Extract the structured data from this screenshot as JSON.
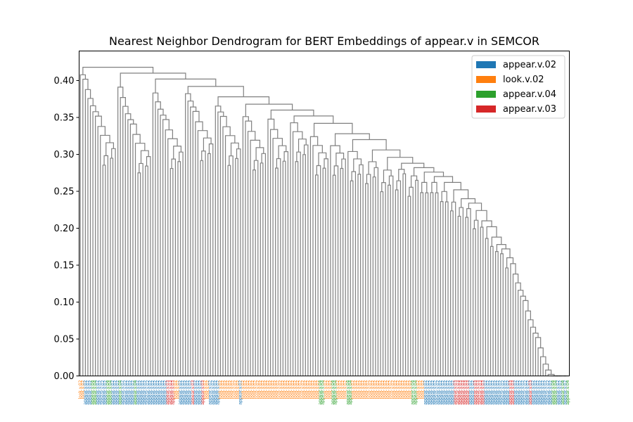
{
  "chart_data": {
    "type": "dendrogram",
    "title": "Nearest Neighbor Dendrogram for BERT Embeddings of appear.v in SEMCOR",
    "xlabel": "",
    "ylabel": "",
    "ylim": [
      0,
      0.44
    ],
    "yticks": [
      0.0,
      0.05,
      0.1,
      0.15,
      0.2,
      0.25,
      0.3,
      0.35,
      0.4
    ],
    "link_color": "#808080",
    "legend": {
      "placement": "top-right",
      "entries": [
        {
          "name": "appear.v.02",
          "color": "#1f77b4"
        },
        {
          "name": "look.v.02",
          "color": "#ff7f0e"
        },
        {
          "name": "appear.v.04",
          "color": "#2ca02c"
        },
        {
          "name": "appear.v.03",
          "color": "#d62728"
        }
      ]
    },
    "leaf_sense_runs": [
      [
        "look.v.02",
        2
      ],
      [
        "appear.v.02",
        3
      ],
      [
        "appear.v.04",
        2
      ],
      [
        "appear.v.02",
        4
      ],
      [
        "appear.v.04",
        2
      ],
      [
        "appear.v.02",
        3
      ],
      [
        "appear.v.04",
        1
      ],
      [
        "appear.v.02",
        5
      ],
      [
        "appear.v.04",
        1
      ],
      [
        "appear.v.02",
        12
      ],
      [
        "appear.v.03",
        3
      ],
      [
        "look.v.02",
        2
      ],
      [
        "appear.v.02",
        5
      ],
      [
        "appear.v.03",
        1
      ],
      [
        "appear.v.02",
        3
      ],
      [
        "appear.v.03",
        1
      ],
      [
        "look.v.02",
        2
      ],
      [
        "appear.v.02",
        4
      ],
      [
        "look.v.02",
        8
      ],
      [
        "appear.v.02",
        1
      ],
      [
        "look.v.02",
        31
      ],
      [
        "appear.v.04",
        2
      ],
      [
        "look.v.02",
        3
      ],
      [
        "appear.v.04",
        2
      ],
      [
        "look.v.02",
        4
      ],
      [
        "appear.v.04",
        2
      ],
      [
        "look.v.02",
        24
      ],
      [
        "appear.v.04",
        2
      ],
      [
        "look.v.02",
        3
      ],
      [
        "appear.v.02",
        12
      ],
      [
        "appear.v.03",
        6
      ],
      [
        "appear.v.02",
        2
      ],
      [
        "appear.v.03",
        4
      ],
      [
        "appear.v.02",
        10
      ],
      [
        "appear.v.03",
        2
      ],
      [
        "appear.v.02",
        6
      ],
      [
        "appear.v.03",
        1
      ],
      [
        "appear.v.02",
        8
      ],
      [
        "appear.v.04",
        2
      ],
      [
        "appear.v.02",
        2
      ],
      [
        "appear.v.04",
        1
      ],
      [
        "appear.v.02",
        1
      ],
      [
        "appear.v.04",
        1
      ]
    ],
    "merge_heights": [
      0.418,
      0.41,
      0.396,
      0.39,
      0.381,
      0.347,
      0.329,
      0.327,
      0.322,
      0.32,
      0.318,
      0.315,
      0.314,
      0.313,
      0.311,
      0.309,
      0.308,
      0.305,
      0.304,
      0.303,
      0.3,
      0.298,
      0.297,
      0.296,
      0.295,
      0.294,
      0.29,
      0.288,
      0.287,
      0.286,
      0.285,
      0.284,
      0.283,
      0.282,
      0.28,
      0.278,
      0.276,
      0.275,
      0.274,
      0.272,
      0.27,
      0.268,
      0.266,
      0.264,
      0.262,
      0.26,
      0.258,
      0.256,
      0.254,
      0.252,
      0.25,
      0.248,
      0.246,
      0.244,
      0.242,
      0.24,
      0.238,
      0.236,
      0.234,
      0.232,
      0.23,
      0.228,
      0.226,
      0.224,
      0.222,
      0.22,
      0.218,
      0.216,
      0.214,
      0.212,
      0.21,
      0.208,
      0.206,
      0.204,
      0.202,
      0.2,
      0.198,
      0.196,
      0.194,
      0.192,
      0.19,
      0.188,
      0.185,
      0.183,
      0.18,
      0.178,
      0.176,
      0.174,
      0.172,
      0.17,
      0.168,
      0.165,
      0.162,
      0.16,
      0.158,
      0.156,
      0.154,
      0.152,
      0.15,
      0.148,
      0.146,
      0.144,
      0.142,
      0.14,
      0.138,
      0.136,
      0.134,
      0.132,
      0.13,
      0.128,
      0.126,
      0.124,
      0.122,
      0.12,
      0.118,
      0.116,
      0.114,
      0.112,
      0.11,
      0.108,
      0.106,
      0.105,
      0.104,
      0.103,
      0.102,
      0.101,
      0.1,
      0.099,
      0.098,
      0.097,
      0.096,
      0.095
    ]
  }
}
